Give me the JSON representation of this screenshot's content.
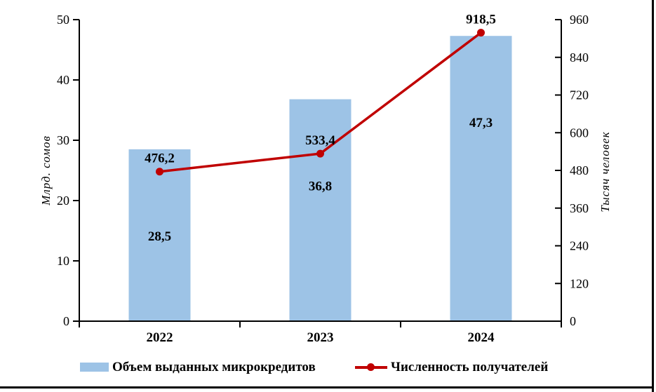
{
  "figure": {
    "background": "#FFFFFF",
    "frame_color": "#000000"
  },
  "chart_data": {
    "type": "combo_bar_line",
    "categories": [
      "2022",
      "2023",
      "2024"
    ],
    "series": [
      {
        "name": "Объем выданных микрокредитов",
        "chart_type": "bar",
        "axis": "left",
        "color": "#9DC3E6",
        "values": [
          28.5,
          36.8,
          47.3
        ],
        "data_labels": [
          "28,5",
          "36,8",
          "47,3"
        ]
      },
      {
        "name": "Численность получателей",
        "chart_type": "line",
        "axis": "right",
        "color": "#C00000",
        "marker": "circle",
        "values": [
          476.2,
          533.4,
          918.5
        ],
        "data_labels": [
          "476,2",
          "533,4",
          "918,5"
        ]
      }
    ],
    "left_axis": {
      "label": "Млрд. сомов",
      "min": 0,
      "max": 50,
      "step": 10,
      "tick_labels": [
        "0",
        "10",
        "20",
        "30",
        "40",
        "50"
      ]
    },
    "right_axis": {
      "label": "Тысяч человек",
      "min": 0,
      "max": 960,
      "step": 120,
      "tick_labels": [
        "0",
        "120",
        "240",
        "360",
        "480",
        "600",
        "720",
        "840",
        "960"
      ]
    },
    "x_axis": {
      "tick_labels": [
        "2022",
        "2023",
        "2024"
      ]
    },
    "legend": {
      "position": "bottom"
    },
    "grid": false,
    "text_color": "#000000",
    "axis_color": "#000000"
  }
}
